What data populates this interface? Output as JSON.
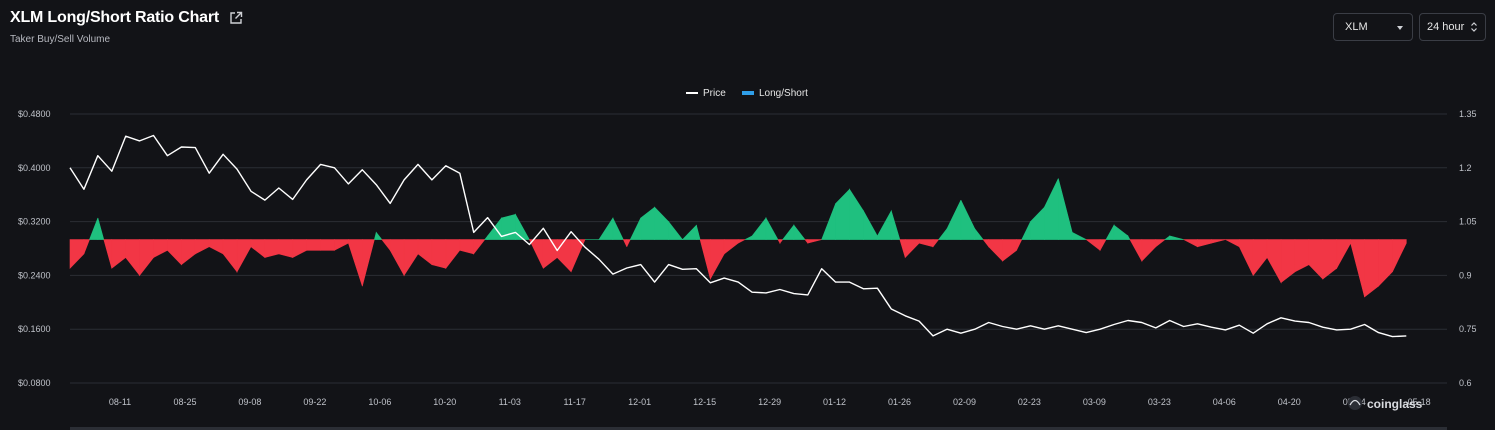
{
  "header": {
    "title": "XLM Long/Short Ratio Chart",
    "subtitle": "Taker Buy/Sell Volume"
  },
  "controls": {
    "coin_select": "XLM",
    "range_select": "24 hour"
  },
  "watermark": "coinglass",
  "colors": {
    "background": "#121317",
    "gridline": "#2b2e35",
    "price_line": "#ffffff",
    "long_area": "#1fc07f",
    "short_area": "#f23645",
    "legend_long_short": "#2f9ee8"
  },
  "chart_data": {
    "type": "line",
    "title": "",
    "legend": [
      "Price",
      "Long/Short"
    ],
    "legend_position": "top-center",
    "grid": true,
    "x_tick_labels": [
      "08-11",
      "08-25",
      "09-08",
      "09-22",
      "10-06",
      "10-20",
      "11-03",
      "11-17",
      "12-01",
      "12-15",
      "12-29",
      "01-12",
      "01-26",
      "02-09",
      "02-23",
      "03-09",
      "03-23",
      "04-06",
      "04-20",
      "05-04",
      "05-18"
    ],
    "y_left": {
      "label": "",
      "ticks": [
        "$0.0800",
        "$0.1600",
        "$0.2400",
        "$0.3200",
        "$0.4000",
        "$0.4800"
      ],
      "range": [
        0.08,
        0.48
      ]
    },
    "y_right": {
      "label": "",
      "ticks": [
        "0.6",
        "0.75",
        "0.9",
        "1.05",
        "1.2",
        "1.35"
      ],
      "range": [
        0.6,
        1.35
      ]
    },
    "series": [
      {
        "name": "Price",
        "axis": "left",
        "sample_every_days": 3,
        "start": "08-01",
        "values": [
          0.4,
          0.368,
          0.418,
          0.395,
          0.447,
          0.44,
          0.448,
          0.418,
          0.431,
          0.43,
          0.392,
          0.42,
          0.398,
          0.365,
          0.352,
          0.37,
          0.353,
          0.382,
          0.405,
          0.4,
          0.376,
          0.397,
          0.375,
          0.347,
          0.382,
          0.405,
          0.382,
          0.403,
          0.392,
          0.304,
          0.326,
          0.298,
          0.304,
          0.286,
          0.31,
          0.277,
          0.305,
          0.282,
          0.264,
          0.242,
          0.251,
          0.256,
          0.23,
          0.256,
          0.249,
          0.25,
          0.229,
          0.236,
          0.23,
          0.215,
          0.214,
          0.219,
          0.213,
          0.211,
          0.25,
          0.23,
          0.23,
          0.22,
          0.221,
          0.19,
          0.18,
          0.172,
          0.15,
          0.16,
          0.154,
          0.16,
          0.17,
          0.164,
          0.16,
          0.165,
          0.16,
          0.165,
          0.16,
          0.155,
          0.16,
          0.167,
          0.173,
          0.17,
          0.162,
          0.173,
          0.164,
          0.168,
          0.163,
          0.159,
          0.166,
          0.154,
          0.168,
          0.177,
          0.172,
          0.17,
          0.163,
          0.159,
          0.16,
          0.167,
          0.155,
          0.149,
          0.15
        ]
      },
      {
        "name": "Long/Short",
        "axis": "right",
        "baseline": 1.0,
        "sample_every_days": 3,
        "start": "08-01",
        "values": [
          0.92,
          0.96,
          1.06,
          0.92,
          0.95,
          0.9,
          0.95,
          0.97,
          0.93,
          0.96,
          0.98,
          0.96,
          0.91,
          0.98,
          0.95,
          0.96,
          0.95,
          0.97,
          0.97,
          0.97,
          0.99,
          0.87,
          1.02,
          0.97,
          0.9,
          0.96,
          0.93,
          0.92,
          0.97,
          0.96,
          1.01,
          1.06,
          1.07,
          1.0,
          0.92,
          0.95,
          0.91,
          1.0,
          1.0,
          1.06,
          0.98,
          1.06,
          1.09,
          1.05,
          1.0,
          1.04,
          0.89,
          0.96,
          0.99,
          1.01,
          1.06,
          0.99,
          1.04,
          0.99,
          1.0,
          1.1,
          1.14,
          1.08,
          1.01,
          1.08,
          0.95,
          0.99,
          0.98,
          1.03,
          1.11,
          1.03,
          0.98,
          0.94,
          0.97,
          1.05,
          1.09,
          1.17,
          1.02,
          1.0,
          0.97,
          1.04,
          1.01,
          0.94,
          0.98,
          1.01,
          1.0,
          0.98,
          0.99,
          1.0,
          0.98,
          0.9,
          0.95,
          0.88,
          0.91,
          0.93,
          0.89,
          0.92,
          0.99,
          0.84,
          0.87,
          0.91,
          0.99
        ]
      }
    ]
  }
}
